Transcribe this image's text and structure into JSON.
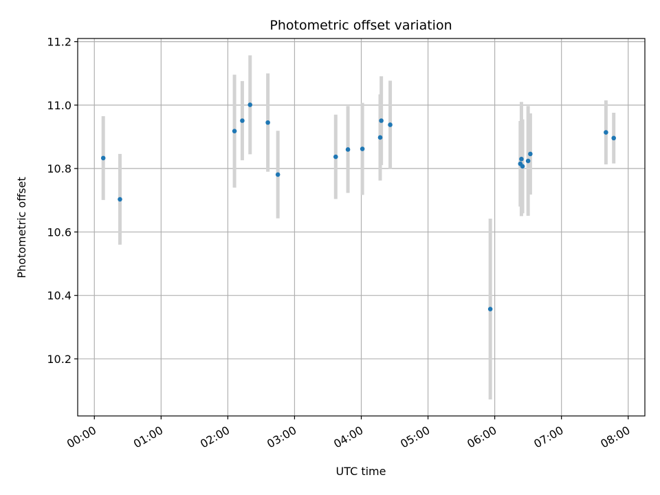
{
  "chart_data": {
    "type": "scatter",
    "title": "Photometric offset variation",
    "xlabel": "UTC time",
    "ylabel": "Photometric offset",
    "x_unit": "UTC time (HH:MM)",
    "xlim": [
      "23:45",
      "08:15"
    ],
    "ylim": [
      10.02,
      11.21
    ],
    "x_ticks": [
      "00:00",
      "01:00",
      "02:00",
      "03:00",
      "04:00",
      "05:00",
      "06:00",
      "07:00",
      "08:00"
    ],
    "y_ticks": [
      10.2,
      10.4,
      10.6,
      10.8,
      11.0,
      11.2
    ],
    "y_tick_labels": [
      "10.2",
      "10.4",
      "10.6",
      "10.8",
      "11.0",
      "11.2"
    ],
    "grid": true,
    "marker_color": "#1f77b4",
    "errorbar_color": "#d3d3d3",
    "points": [
      {
        "x": "00:08",
        "y": 10.833,
        "err": 0.132
      },
      {
        "x": "00:23",
        "y": 10.703,
        "err": 0.143
      },
      {
        "x": "02:06",
        "y": 10.918,
        "err": 0.178
      },
      {
        "x": "02:13",
        "y": 10.951,
        "err": 0.125
      },
      {
        "x": "02:20",
        "y": 11.001,
        "err": 0.156
      },
      {
        "x": "02:36",
        "y": 10.945,
        "err": 0.155
      },
      {
        "x": "02:45",
        "y": 10.781,
        "err": 0.138
      },
      {
        "x": "03:37",
        "y": 10.837,
        "err": 0.133
      },
      {
        "x": "03:48",
        "y": 10.86,
        "err": 0.137
      },
      {
        "x": "04:01",
        "y": 10.862,
        "err": 0.145
      },
      {
        "x": "04:17",
        "y": 10.898,
        "err": 0.136
      },
      {
        "x": "04:18",
        "y": 10.951,
        "err": 0.14
      },
      {
        "x": "04:26",
        "y": 10.938,
        "err": 0.139
      },
      {
        "x": "05:56",
        "y": 10.357,
        "err": 0.285
      },
      {
        "x": "06:23",
        "y": 10.815,
        "err": 0.135
      },
      {
        "x": "06:24",
        "y": 10.83,
        "err": 0.18
      },
      {
        "x": "06:25",
        "y": 10.807,
        "err": 0.148
      },
      {
        "x": "06:30",
        "y": 10.824,
        "err": 0.173
      },
      {
        "x": "06:32",
        "y": 10.846,
        "err": 0.128
      },
      {
        "x": "07:40",
        "y": 10.914,
        "err": 0.101
      },
      {
        "x": "07:47",
        "y": 10.896,
        "err": 0.08
      }
    ]
  }
}
